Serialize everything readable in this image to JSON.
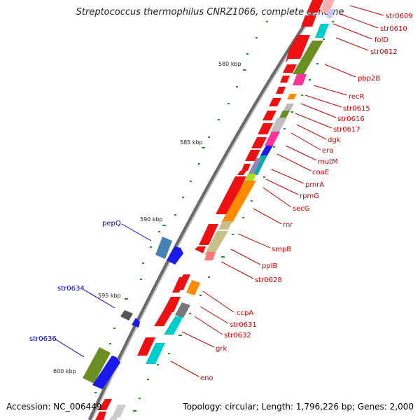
{
  "title": "Streptococcus thermophilus CNRZ1066, complete genome",
  "footer": {
    "accession": "Accession: NC_006449",
    "summary": "Topology: circular; Length: 1,796,226 bp; Genes: 2,000"
  },
  "kbp_labels": [
    "580 kbp",
    "585 kbp",
    "590 kbp",
    "595 kbp",
    "600 kbp"
  ],
  "genes_right": [
    "str0609",
    "str0610",
    "folD",
    "str0612",
    "pbp2B",
    "recR",
    "str0615",
    "str0616",
    "str0617",
    "dgk",
    "era",
    "mutM",
    "coaE",
    "pmrA",
    "rpmG",
    "secG",
    "rnr",
    "smpB",
    "pplB",
    "str0628",
    "ccpA",
    "str0631",
    "str0632",
    "grk",
    "eno"
  ],
  "genes_left": [
    "pepQ",
    "str0634",
    "str0636"
  ],
  "colors": {
    "red_label": "#cc0000",
    "blue_label": "#0000cc",
    "backbone": "#808080",
    "tick": "#2e8b2e"
  }
}
